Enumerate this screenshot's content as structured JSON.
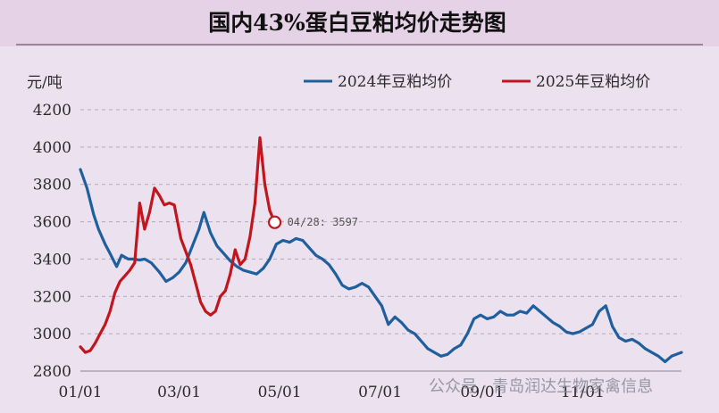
{
  "chart_data": {
    "type": "line",
    "title": "国内43%蛋白豆粕均价走势图",
    "ylabel": "元/吨",
    "ylim": [
      2800,
      4200
    ],
    "yticks": [
      2800,
      3000,
      3200,
      3400,
      3600,
      3800,
      4000,
      4200
    ],
    "xlim": [
      "01/01",
      "12/31"
    ],
    "xtick_labels": [
      "01/01",
      "03/01",
      "05/01",
      "07/01",
      "09/01",
      "11/01"
    ],
    "grid": "horizontal dashed",
    "legend_position": "top-right",
    "colors": {
      "background": "#ece1ee",
      "title_band": "#e6d2e6",
      "s2024": "#1f5f9e",
      "s2025": "#c2161f",
      "grid": "#b5a9b8"
    },
    "series": [
      {
        "name": "2024年豆粕均价",
        "x": [
          "01-01",
          "01-05",
          "01-09",
          "01-12",
          "01-16",
          "01-19",
          "01-23",
          "01-26",
          "01-30",
          "02-02",
          "02-06",
          "02-09",
          "02-13",
          "02-18",
          "02-22",
          "02-26",
          "03-01",
          "03-05",
          "03-09",
          "03-13",
          "03-16",
          "03-20",
          "03-24",
          "03-28",
          "04-01",
          "04-05",
          "04-09",
          "04-13",
          "04-17",
          "04-21",
          "04-25",
          "04-29",
          "05-03",
          "05-07",
          "05-11",
          "05-15",
          "05-19",
          "05-23",
          "05-27",
          "05-31",
          "06-04",
          "06-08",
          "06-12",
          "06-16",
          "06-20",
          "06-24",
          "06-28",
          "07-02",
          "07-06",
          "07-10",
          "07-14",
          "07-18",
          "07-22",
          "07-26",
          "07-30",
          "08-03",
          "08-07",
          "08-11",
          "08-15",
          "08-19",
          "08-23",
          "08-27",
          "08-31",
          "09-04",
          "09-08",
          "09-12",
          "09-16",
          "09-20",
          "09-24",
          "09-28",
          "10-02",
          "10-06",
          "10-10",
          "10-14",
          "10-18",
          "10-22",
          "10-26",
          "10-30",
          "11-03",
          "11-07",
          "11-11",
          "11-15",
          "11-19",
          "11-23",
          "11-27",
          "12-01",
          "12-05",
          "12-09",
          "12-13",
          "12-17",
          "12-21",
          "12-25",
          "12-31"
        ],
        "values": [
          3880,
          3780,
          3640,
          3560,
          3480,
          3430,
          3360,
          3420,
          3400,
          3400,
          3395,
          3400,
          3380,
          3330,
          3280,
          3300,
          3330,
          3380,
          3470,
          3560,
          3650,
          3540,
          3470,
          3430,
          3390,
          3360,
          3340,
          3330,
          3320,
          3350,
          3400,
          3480,
          3500,
          3490,
          3510,
          3500,
          3460,
          3420,
          3400,
          3370,
          3320,
          3260,
          3240,
          3250,
          3270,
          3250,
          3200,
          3150,
          3050,
          3090,
          3060,
          3020,
          3000,
          2960,
          2920,
          2900,
          2880,
          2890,
          2920,
          2940,
          3000,
          3080,
          3100,
          3080,
          3090,
          3120,
          3100,
          3100,
          3120,
          3110,
          3150,
          3120,
          3090,
          3060,
          3040,
          3010,
          3000,
          3010,
          3030,
          3050,
          3120,
          3150,
          3040,
          2980,
          2960,
          2970,
          2950,
          2920,
          2900,
          2880,
          2850,
          2880,
          2900
        ]
      },
      {
        "name": "2025年豆粕均价",
        "x": [
          "01-01",
          "01-04",
          "01-07",
          "01-10",
          "01-13",
          "01-16",
          "01-19",
          "01-22",
          "01-25",
          "01-28",
          "01-31",
          "02-03",
          "02-06",
          "02-09",
          "02-12",
          "02-15",
          "02-18",
          "02-21",
          "02-24",
          "02-27",
          "03-02",
          "03-05",
          "03-08",
          "03-11",
          "03-14",
          "03-17",
          "03-20",
          "03-23",
          "03-26",
          "03-29",
          "04-01",
          "04-04",
          "04-07",
          "04-10",
          "04-13",
          "04-16",
          "04-19",
          "04-22",
          "04-25",
          "04-28"
        ],
        "values": [
          2930,
          2900,
          2910,
          2950,
          3000,
          3050,
          3120,
          3220,
          3280,
          3310,
          3340,
          3380,
          3700,
          3560,
          3650,
          3780,
          3740,
          3690,
          3700,
          3690,
          3510,
          3440,
          3370,
          3270,
          3170,
          3120,
          3100,
          3120,
          3200,
          3230,
          3320,
          3450,
          3370,
          3400,
          3520,
          3700,
          4050,
          3800,
          3660,
          3597
        ]
      }
    ],
    "annotation": {
      "label": "04/28: 3597"
    },
    "watermark": "公众号 · 青岛润达生物家禽信息"
  }
}
